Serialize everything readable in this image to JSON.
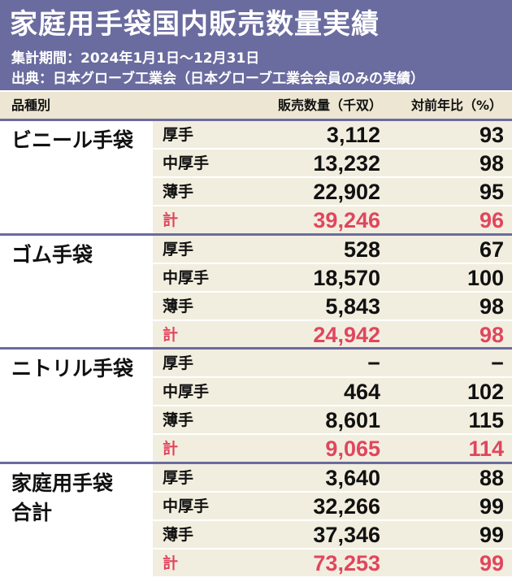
{
  "header": {
    "title": "家庭用手袋国内販売数量実績",
    "period": "集計期間：2024年1月1日〜12月31日",
    "source": "出典：日本グローブ工業会（日本グローブ工業会会員のみの実績）"
  },
  "columns": {
    "category": "品種別",
    "quantity": "販売数量（千双）",
    "yoy": "対前年比（%）"
  },
  "colors": {
    "header_bg": "#6a6b9f",
    "row_bg": "#f2eedf",
    "total_text": "#e0465e"
  },
  "groups": [
    {
      "name": "ビニール手袋",
      "rows": [
        {
          "label": "厚手",
          "qty": "3,112",
          "yoy": "93"
        },
        {
          "label": "中厚手",
          "qty": "13,232",
          "yoy": "98"
        },
        {
          "label": "薄手",
          "qty": "22,902",
          "yoy": "95"
        },
        {
          "label": "計",
          "qty": "39,246",
          "yoy": "96"
        }
      ]
    },
    {
      "name": "ゴム手袋",
      "rows": [
        {
          "label": "厚手",
          "qty": "528",
          "yoy": "67"
        },
        {
          "label": "中厚手",
          "qty": "18,570",
          "yoy": "100"
        },
        {
          "label": "薄手",
          "qty": "5,843",
          "yoy": "98"
        },
        {
          "label": "計",
          "qty": "24,942",
          "yoy": "98"
        }
      ]
    },
    {
      "name": "ニトリル手袋",
      "rows": [
        {
          "label": "厚手",
          "qty": "−",
          "yoy": "−"
        },
        {
          "label": "中厚手",
          "qty": "464",
          "yoy": "102"
        },
        {
          "label": "薄手",
          "qty": "8,601",
          "yoy": "115"
        },
        {
          "label": "計",
          "qty": "9,065",
          "yoy": "114"
        }
      ]
    },
    {
      "name_line1": "家庭用手袋",
      "name_line2": "合計",
      "rows": [
        {
          "label": "厚手",
          "qty": "3,640",
          "yoy": "88"
        },
        {
          "label": "中厚手",
          "qty": "32,266",
          "yoy": "99"
        },
        {
          "label": "薄手",
          "qty": "37,346",
          "yoy": "99"
        },
        {
          "label": "計",
          "qty": "73,253",
          "yoy": "99"
        }
      ]
    }
  ]
}
